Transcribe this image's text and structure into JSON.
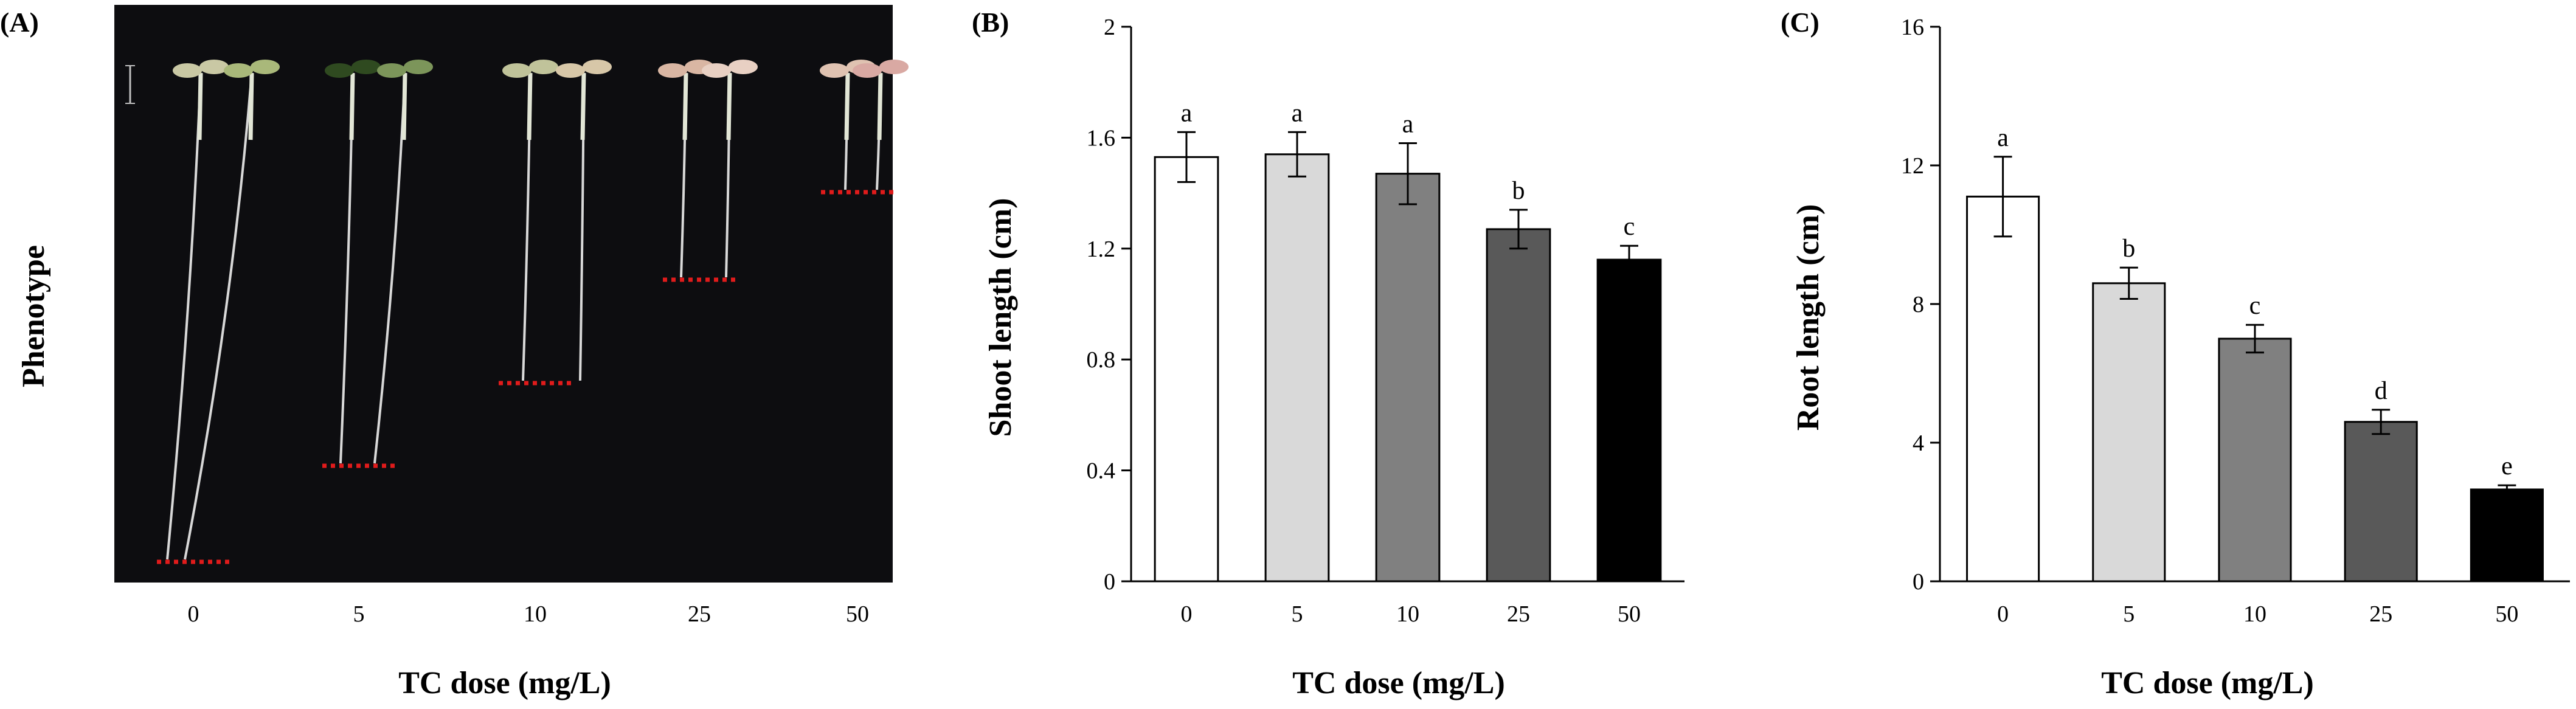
{
  "figure": {
    "colors": {
      "photo_background": "#0d0d10",
      "bar_fills": [
        "#ffffff",
        "#d9d9d9",
        "#808080",
        "#595959",
        "#000000"
      ],
      "baseline_marker": "#e01b1b",
      "axis": "#000000"
    }
  },
  "panel_a": {
    "label": "(A)",
    "row_label": "Phenotype",
    "xlabel": "TC dose (mg/L)",
    "categories": [
      "0",
      "5",
      "10",
      "25",
      "50"
    ]
  },
  "chart_data": [
    {
      "type": "bar",
      "label": "(B)",
      "title": "",
      "xlabel": "TC dose (mg/L)",
      "ylabel": "Shoot length (cm)",
      "categories": [
        "0",
        "5",
        "10",
        "25",
        "50"
      ],
      "values": [
        1.53,
        1.54,
        1.47,
        1.27,
        1.16
      ],
      "errors": [
        0.09,
        0.08,
        0.11,
        0.07,
        0.05
      ],
      "significance": [
        "a",
        "a",
        "a",
        "b",
        "c"
      ],
      "ylim": [
        0,
        2
      ],
      "yticks": [
        0,
        0.4,
        0.8,
        1.2,
        1.6,
        2
      ],
      "ytick_labels": [
        "0",
        "0.4",
        "0.8",
        "1.2",
        "1.6",
        "2"
      ],
      "grid": false
    },
    {
      "type": "bar",
      "label": "(C)",
      "title": "",
      "xlabel": "TC dose (mg/L)",
      "ylabel": "Root length (cm)",
      "categories": [
        "0",
        "5",
        "10",
        "25",
        "50"
      ],
      "values": [
        11.1,
        8.6,
        7.0,
        4.6,
        2.65
      ],
      "errors": [
        1.15,
        0.45,
        0.4,
        0.35,
        0.12
      ],
      "significance": [
        "a",
        "b",
        "c",
        "d",
        "e"
      ],
      "ylim": [
        0,
        16
      ],
      "yticks": [
        0,
        4,
        8,
        12,
        16
      ],
      "ytick_labels": [
        "0",
        "4",
        "8",
        "12",
        "16"
      ],
      "grid": false
    }
  ]
}
